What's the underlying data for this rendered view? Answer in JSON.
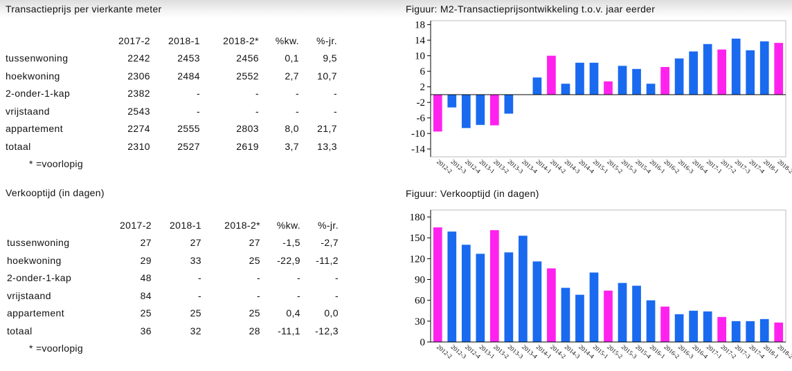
{
  "headers": {
    "left_top": "Transactieprijs per vierkante meter",
    "right_top": "Figuur: M2-Transactieprijsontwikkeling t.o.v. jaar eerder",
    "left_bottom": "Verkooptijd (in dagen)",
    "right_bottom": "Figuur: Verkooptijd (in dagen)"
  },
  "price_table": {
    "columns": [
      "2017-2",
      "2018-1",
      "2018-2*",
      "%kw.",
      "%-jr."
    ],
    "rows": [
      {
        "label": "tussenwoning",
        "cells": [
          "2242",
          "2453",
          "2456",
          "0,1",
          "9,5"
        ]
      },
      {
        "label": "hoekwoning",
        "cells": [
          "2306",
          "2484",
          "2552",
          "2,7",
          "10,7"
        ]
      },
      {
        "label": "2-onder-1-kap",
        "cells": [
          "2382",
          "-",
          "-",
          "-",
          "-"
        ]
      },
      {
        "label": "vrijstaand",
        "cells": [
          "2543",
          "-",
          "-",
          "-",
          "-"
        ]
      },
      {
        "label": "appartement",
        "cells": [
          "2274",
          "2555",
          "2803",
          "8,0",
          "21,7"
        ]
      },
      {
        "label": "totaal",
        "cells": [
          "2310",
          "2527",
          "2619",
          "3,7",
          "13,3"
        ]
      }
    ],
    "note": "* =voorlopig"
  },
  "time_table": {
    "columns": [
      "2017-2",
      "2018-1",
      "2018-2*",
      "%kw.",
      "%-jr."
    ],
    "rows": [
      {
        "label": "tussenwoning",
        "cells": [
          "27",
          "27",
          "27",
          "-1,5",
          "-2,7"
        ]
      },
      {
        "label": "hoekwoning",
        "cells": [
          "29",
          "33",
          "25",
          "-22,9",
          "-11,2"
        ]
      },
      {
        "label": "2-onder-1-kap",
        "cells": [
          "48",
          "-",
          "-",
          "-",
          "-"
        ]
      },
      {
        "label": "vrijstaand",
        "cells": [
          "84",
          "-",
          "-",
          "-",
          "-"
        ]
      },
      {
        "label": "appartement",
        "cells": [
          "25",
          "25",
          "25",
          "0,4",
          "0,0"
        ]
      },
      {
        "label": "totaal",
        "cells": [
          "36",
          "32",
          "28",
          "-11,1",
          "-12,3"
        ]
      }
    ],
    "note": "* =voorlopig"
  },
  "colors": {
    "blue": "#1a6af0",
    "magenta": "#ff22ee"
  },
  "chart_data": [
    {
      "type": "bar",
      "title": "Figuur: M2-Transactieprijsontwikkeling t.o.v. jaar eerder",
      "categories": [
        "2012-2",
        "2012-3",
        "2012-4",
        "2013-1",
        "2013-2",
        "2013-3",
        "2013-4",
        "2014-1",
        "2014-2",
        "2014-3",
        "2014-4",
        "2015-1",
        "2015-2",
        "2015-3",
        "2015-4",
        "2016-1",
        "2016-2",
        "2016-3",
        "2016-4",
        "2017-1",
        "2017-2",
        "2017-3",
        "2017-4",
        "2018-1",
        "2018-2"
      ],
      "values": [
        -9.5,
        -3.3,
        -8.6,
        -7.8,
        -7.9,
        -4.9,
        0,
        4.4,
        10,
        2.8,
        8.2,
        8.2,
        3.4,
        7.4,
        6.6,
        2.8,
        7.1,
        9.3,
        11.1,
        13,
        11.6,
        14.4,
        11.4,
        13.7,
        13.3
      ],
      "highlight": [
        true,
        false,
        false,
        false,
        true,
        false,
        false,
        false,
        true,
        false,
        false,
        false,
        true,
        false,
        false,
        false,
        true,
        false,
        false,
        false,
        true,
        false,
        false,
        false,
        true
      ],
      "yticks": [
        -14,
        -10,
        -6,
        -2,
        2,
        6,
        10,
        14,
        18
      ],
      "ylim": [
        -16,
        19
      ]
    },
    {
      "type": "bar",
      "title": "Figuur: Verkooptijd (in dagen)",
      "categories": [
        "2012-2",
        "2012-3",
        "2012-4",
        "2013-1",
        "2013-2",
        "2013-3",
        "2013-4",
        "2014-1",
        "2014-2",
        "2014-3",
        "2014-4",
        "2015-1",
        "2015-2",
        "2015-3",
        "2015-4",
        "2016-1",
        "2016-2",
        "2016-3",
        "2016-4",
        "2017-1",
        "2017-2",
        "2017-3",
        "2017-4",
        "2018-1",
        "2018-2"
      ],
      "values": [
        165,
        159,
        140,
        127,
        161,
        129,
        153,
        116,
        106,
        78,
        68,
        100,
        74,
        85,
        81,
        60,
        51,
        40,
        45,
        44,
        36,
        30,
        30,
        33,
        28
      ],
      "highlight": [
        true,
        false,
        false,
        false,
        true,
        false,
        false,
        false,
        true,
        false,
        false,
        false,
        true,
        false,
        false,
        false,
        true,
        false,
        false,
        false,
        true,
        false,
        false,
        false,
        true
      ],
      "yticks": [
        0,
        30,
        60,
        90,
        120,
        150,
        180
      ],
      "ylim": [
        0,
        190
      ]
    }
  ]
}
